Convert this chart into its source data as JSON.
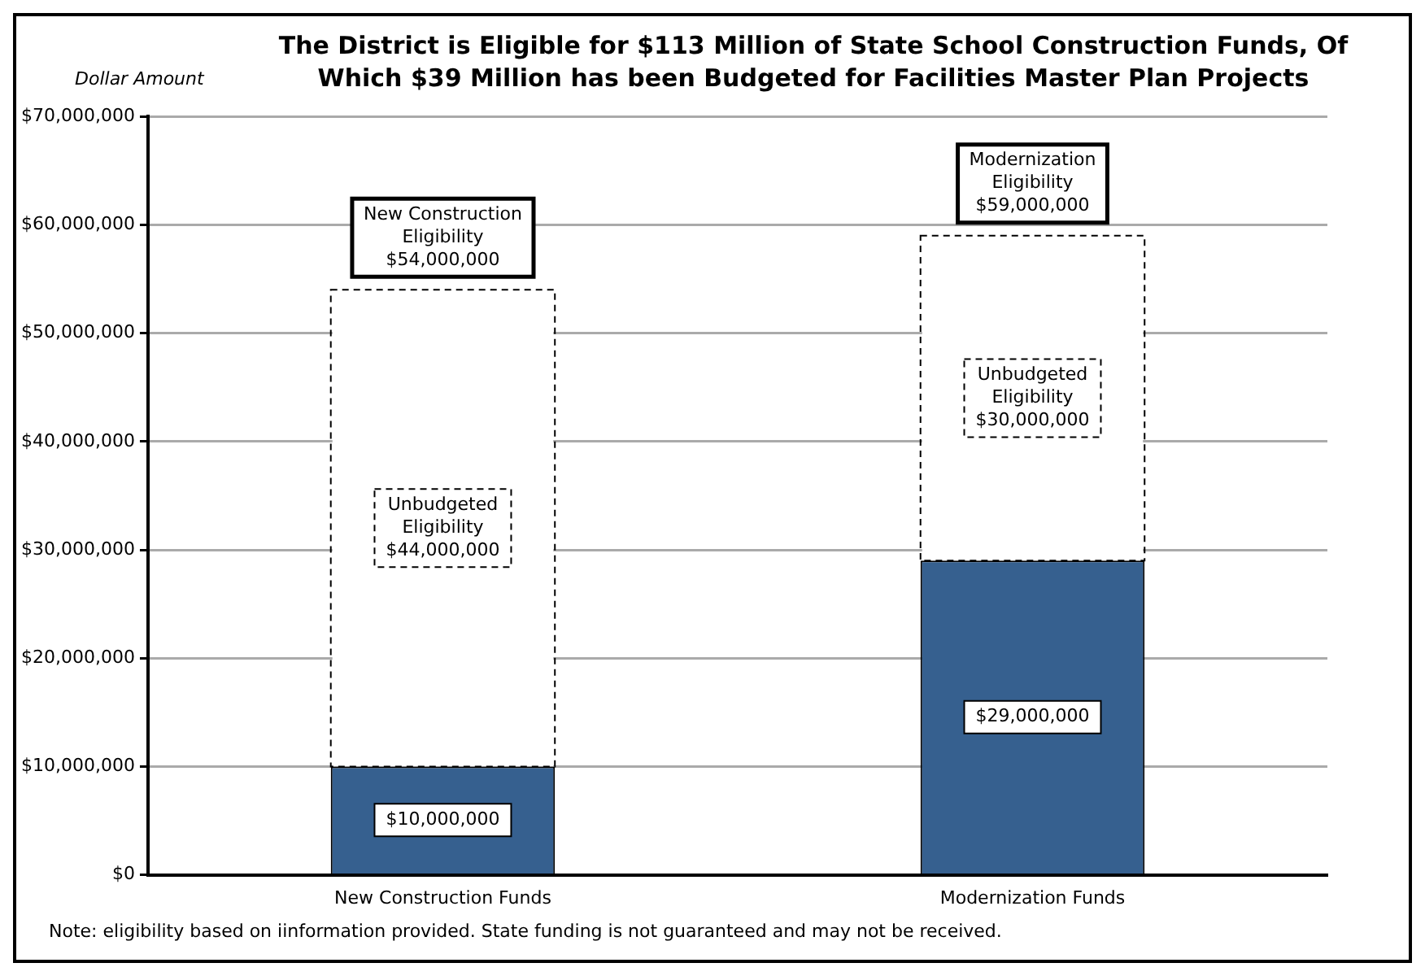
{
  "chart_data": {
    "type": "bar",
    "title": "The District is Eligible for $113 Million of State School Construction Funds, Of Which $39 Million has been Budgeted for Facilities Master Plan Projects",
    "ylabel": "Dollar Amount",
    "categories": [
      "New Construction Funds",
      "Modernization Funds"
    ],
    "stacked": true,
    "series": [
      {
        "color": "#36608f",
        "values": [
          10000000,
          29000000
        ],
        "value_labels": [
          "$10,000,000",
          "$29,000,000"
        ]
      },
      {
        "color": "#ffffff",
        "line_style": "dashed",
        "values": [
          44000000,
          30000000
        ],
        "value_labels": [
          "Unbudgeted Eligibility $44,000,000",
          "Unbudgeted Eligibility $30,000,000"
        ]
      }
    ],
    "ylim": [
      0,
      70000000
    ],
    "yticks": [
      {
        "value": 0,
        "label": "$0"
      },
      {
        "value": 10000000,
        "label": "$10,000,000"
      },
      {
        "value": 20000000,
        "label": "$20,000,000"
      },
      {
        "value": 30000000,
        "label": "$30,000,000"
      },
      {
        "value": 40000000,
        "label": "$40,000,000"
      },
      {
        "value": 50000000,
        "label": "$50,000,000"
      },
      {
        "value": 60000000,
        "label": "$60,000,000"
      },
      {
        "value": 70000000,
        "label": "$70,000,000"
      }
    ],
    "grid": "y",
    "legend": false,
    "annotations": [
      {
        "text": "New Construction Eligibility $54,000,000",
        "x": "New Construction Funds",
        "y": 54000000
      },
      {
        "text": "Modernization Eligibility $59,000,000",
        "x": "Modernization Funds",
        "y": 59000000
      },
      "Note: eligibility based on iinformation provided.  State funding is not guaranteed and may not be received."
    ]
  }
}
